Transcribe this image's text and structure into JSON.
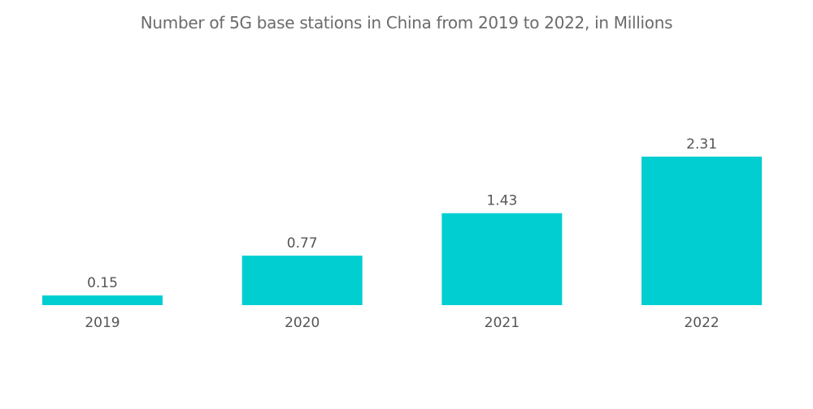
{
  "chart_data": {
    "type": "bar",
    "title": "Number of 5G base stations in China from 2019 to 2022, in Millions",
    "categories": [
      "2019",
      "2020",
      "2021",
      "2022"
    ],
    "values": [
      0.15,
      0.77,
      1.43,
      2.31
    ],
    "value_labels": [
      "0.15",
      "0.77",
      "1.43",
      "2.31"
    ],
    "xlabel": "",
    "ylabel": "",
    "ylim": [
      0,
      2.31
    ],
    "grid": false,
    "legend": "none",
    "bar_color": "#00CED1"
  }
}
